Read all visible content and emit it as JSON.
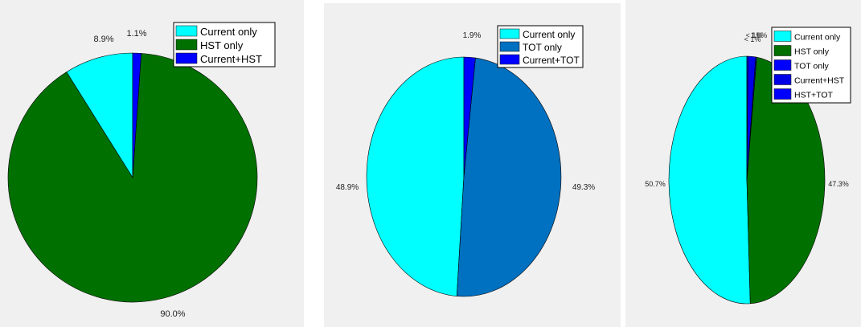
{
  "chart_data": [
    {
      "type": "pie",
      "slices": [
        {
          "label": "Current only",
          "value": 8.9,
          "pct_label": "8.9%",
          "color": "#00ffff"
        },
        {
          "label": "HST only",
          "value": 90.0,
          "pct_label": "90.0%",
          "color": "#007000"
        },
        {
          "label": "Current+HST",
          "value": 1.1,
          "pct_label": "1.1%",
          "color": "#0000ff"
        }
      ],
      "legend": {
        "position": "top-right",
        "entries": [
          "Current only",
          "HST only",
          "Current+HST"
        ]
      },
      "start_angle_deg": 0,
      "direction": "counterclockwise"
    },
    {
      "type": "pie",
      "slices": [
        {
          "label": "Current only",
          "value": 48.9,
          "pct_label": "48.9%",
          "color": "#00ffff"
        },
        {
          "label": "TOT only",
          "value": 49.3,
          "pct_label": "49.3%",
          "color": "#0070c0"
        },
        {
          "label": "Current+TOT",
          "value": 1.9,
          "pct_label": "1.9%",
          "color": "#0000ff"
        }
      ],
      "legend": {
        "position": "top-right",
        "entries": [
          "Current only",
          "TOT only",
          "Current+TOT"
        ]
      },
      "start_angle_deg": 0,
      "direction": "counterclockwise"
    },
    {
      "type": "pie",
      "slices": [
        {
          "label": "Current only",
          "value": 50.7,
          "pct_label": "50.7%",
          "color": "#00ffff"
        },
        {
          "label": "HST only",
          "value": 47.3,
          "pct_label": "47.3%",
          "color": "#007000"
        },
        {
          "label": "TOT only",
          "value": 0.2,
          "pct_label": "< 1%",
          "color": "#0000ff"
        },
        {
          "label": "Current+HST",
          "value": 1.6,
          "pct_label": "1.6%",
          "color": "#0000e6"
        },
        {
          "label": "HST+TOT",
          "value": 0.2,
          "pct_label": "< 1%",
          "color": "#0000ff"
        }
      ],
      "legend": {
        "position": "top-right",
        "entries": [
          "Current only",
          "HST only",
          "TOT only",
          "Current+HST",
          "HST+TOT"
        ]
      },
      "start_angle_deg": 0,
      "direction": "counterclockwise"
    }
  ]
}
